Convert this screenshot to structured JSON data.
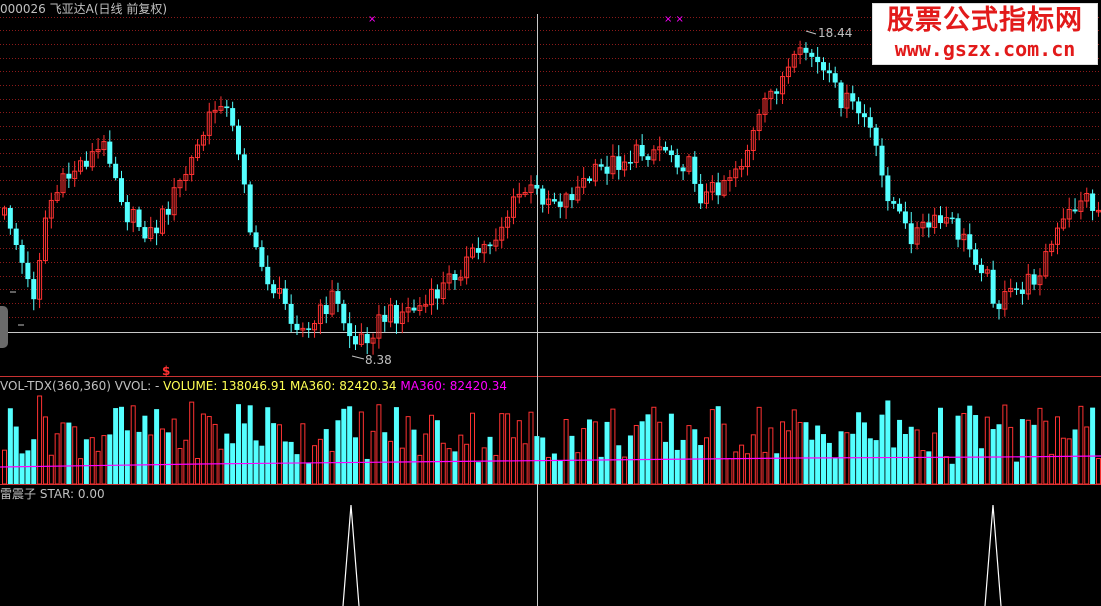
{
  "title": {
    "code": "000026",
    "name": "飞亚达A",
    "period": "(日线 前复权)"
  },
  "price_panel": {
    "high_label": "18.44",
    "low_label": "8.38",
    "signal_glyph": "$",
    "markers": [
      "×",
      "× ×"
    ]
  },
  "volume_panel": {
    "indicator": "VOL-TDX(360,360)",
    "vvol": "VVOL: -",
    "volume": "VOLUME: 138046.91",
    "ma_a": "MA360: 82420.34",
    "ma_b": "MA360: 82420.34"
  },
  "star_panel": {
    "name": "雷震子",
    "value": "STAR: 0.00"
  },
  "watermark": {
    "line1": "股票公式指标网",
    "line2": "www.gszx.com.cn"
  },
  "colors": {
    "background": "#000000",
    "up": "#ff3232",
    "down": "#54ffff",
    "ma": "#ff00ff",
    "grid": "#8b1a1a",
    "title": "#c0c0c0",
    "volume_label": "#ffff54",
    "star_line": "#ffffff"
  },
  "chart_data": {
    "type": "candlestick",
    "price_extremes": {
      "high": 18.44,
      "low": 8.38
    },
    "star_signal_count": 2
  }
}
